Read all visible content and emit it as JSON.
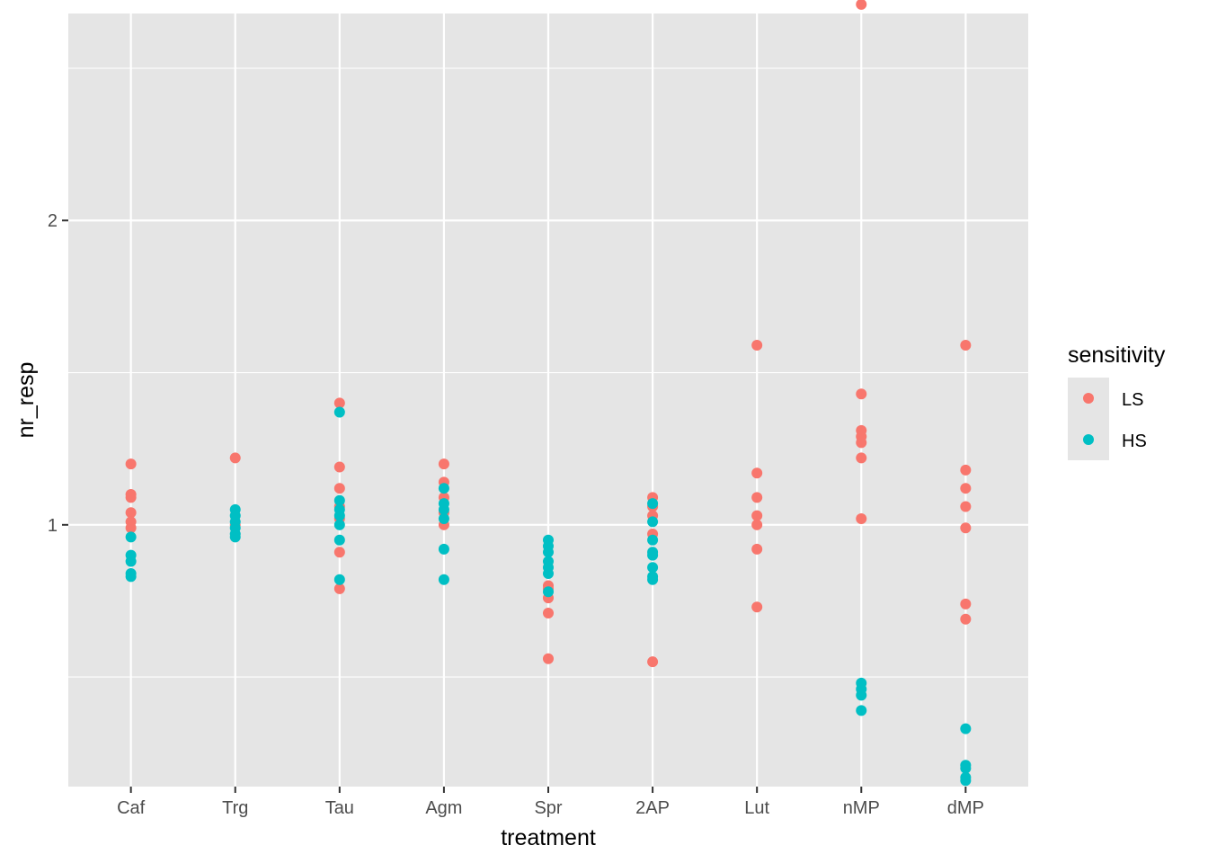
{
  "chart_data": {
    "type": "scatter",
    "title": "",
    "xlabel": "treatment",
    "ylabel": "nr_resp",
    "categories": [
      "Caf",
      "Trg",
      "Tau",
      "Agm",
      "Spr",
      "2AP",
      "Lut",
      "nMP",
      "dMP"
    ],
    "ylim": [
      0.14,
      2.68
    ],
    "yticks": [
      1,
      2
    ],
    "ytick_labels": [
      "1",
      "2"
    ],
    "grid": true,
    "background": "#e5e5e5",
    "legend": {
      "title": "sensitivity",
      "placement": "right"
    },
    "series": [
      {
        "name": "LS",
        "color": "#f8766d",
        "points": [
          [
            "Caf",
            1.2
          ],
          [
            "Caf",
            1.1
          ],
          [
            "Caf",
            1.09
          ],
          [
            "Caf",
            1.04
          ],
          [
            "Caf",
            1.01
          ],
          [
            "Caf",
            0.99
          ],
          [
            "Trg",
            1.22
          ],
          [
            "Trg",
            1.0
          ],
          [
            "Tau",
            1.4
          ],
          [
            "Tau",
            1.19
          ],
          [
            "Tau",
            1.12
          ],
          [
            "Tau",
            1.06
          ],
          [
            "Tau",
            1.02
          ],
          [
            "Tau",
            0.91
          ],
          [
            "Tau",
            0.79
          ],
          [
            "Agm",
            1.2
          ],
          [
            "Agm",
            1.14
          ],
          [
            "Agm",
            1.09
          ],
          [
            "Agm",
            1.04
          ],
          [
            "Agm",
            1.0
          ],
          [
            "Spr",
            0.8
          ],
          [
            "Spr",
            0.79
          ],
          [
            "Spr",
            0.76
          ],
          [
            "Spr",
            0.71
          ],
          [
            "Spr",
            0.56
          ],
          [
            "2AP",
            1.09
          ],
          [
            "2AP",
            1.06
          ],
          [
            "2AP",
            1.03
          ],
          [
            "2AP",
            0.97
          ],
          [
            "2AP",
            0.55
          ],
          [
            "Lut",
            1.59
          ],
          [
            "Lut",
            1.17
          ],
          [
            "Lut",
            1.09
          ],
          [
            "Lut",
            1.03
          ],
          [
            "Lut",
            1.0
          ],
          [
            "Lut",
            0.92
          ],
          [
            "Lut",
            0.73
          ],
          [
            "nMP",
            2.71
          ],
          [
            "nMP",
            1.43
          ],
          [
            "nMP",
            1.31
          ],
          [
            "nMP",
            1.29
          ],
          [
            "nMP",
            1.27
          ],
          [
            "nMP",
            1.22
          ],
          [
            "nMP",
            1.02
          ],
          [
            "dMP",
            1.59
          ],
          [
            "dMP",
            1.18
          ],
          [
            "dMP",
            1.12
          ],
          [
            "dMP",
            1.06
          ],
          [
            "dMP",
            0.99
          ],
          [
            "dMP",
            0.74
          ],
          [
            "dMP",
            0.69
          ]
        ]
      },
      {
        "name": "HS",
        "color": "#00bfc4",
        "points": [
          [
            "Caf",
            0.96
          ],
          [
            "Caf",
            0.9
          ],
          [
            "Caf",
            0.88
          ],
          [
            "Caf",
            0.84
          ],
          [
            "Caf",
            0.83
          ],
          [
            "Trg",
            1.05
          ],
          [
            "Trg",
            1.03
          ],
          [
            "Trg",
            1.01
          ],
          [
            "Trg",
            0.99
          ],
          [
            "Trg",
            0.97
          ],
          [
            "Trg",
            0.96
          ],
          [
            "Tau",
            1.37
          ],
          [
            "Tau",
            1.08
          ],
          [
            "Tau",
            1.05
          ],
          [
            "Tau",
            1.03
          ],
          [
            "Tau",
            1.0
          ],
          [
            "Tau",
            0.95
          ],
          [
            "Tau",
            0.82
          ],
          [
            "Agm",
            1.12
          ],
          [
            "Agm",
            1.07
          ],
          [
            "Agm",
            1.05
          ],
          [
            "Agm",
            1.02
          ],
          [
            "Agm",
            0.92
          ],
          [
            "Agm",
            0.82
          ],
          [
            "Spr",
            0.95
          ],
          [
            "Spr",
            0.93
          ],
          [
            "Spr",
            0.91
          ],
          [
            "Spr",
            0.88
          ],
          [
            "Spr",
            0.86
          ],
          [
            "Spr",
            0.84
          ],
          [
            "Spr",
            0.78
          ],
          [
            "2AP",
            1.07
          ],
          [
            "2AP",
            1.01
          ],
          [
            "2AP",
            0.95
          ],
          [
            "2AP",
            0.91
          ],
          [
            "2AP",
            0.9
          ],
          [
            "2AP",
            0.86
          ],
          [
            "2AP",
            0.83
          ],
          [
            "2AP",
            0.82
          ],
          [
            "nMP",
            0.48
          ],
          [
            "nMP",
            0.46
          ],
          [
            "nMP",
            0.44
          ],
          [
            "nMP",
            0.39
          ],
          [
            "dMP",
            0.33
          ],
          [
            "dMP",
            0.21
          ],
          [
            "dMP",
            0.2
          ],
          [
            "dMP",
            0.17
          ],
          [
            "dMP",
            0.16
          ]
        ]
      }
    ]
  }
}
